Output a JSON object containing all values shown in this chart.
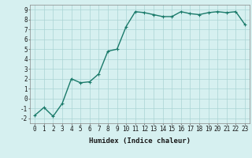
{
  "x": [
    0,
    1,
    2,
    3,
    4,
    5,
    6,
    7,
    8,
    9,
    10,
    11,
    12,
    13,
    14,
    15,
    16,
    17,
    18,
    19,
    20,
    21,
    22,
    23
  ],
  "y": [
    -1.7,
    -0.9,
    -1.8,
    -0.5,
    2.0,
    1.6,
    1.7,
    2.5,
    4.8,
    5.0,
    7.3,
    8.8,
    8.7,
    8.5,
    8.3,
    8.3,
    8.8,
    8.6,
    8.5,
    8.7,
    8.8,
    8.7,
    8.8,
    7.5
  ],
  "line_color": "#1a7a6a",
  "marker": "+",
  "marker_size": 3,
  "background_color": "#d6f0f0",
  "grid_color": "#aad4d4",
  "xlabel": "Humidex (Indice chaleur)",
  "ylabel": "",
  "xlim": [
    -0.5,
    23.5
  ],
  "ylim": [
    -2.5,
    9.5
  ],
  "yticks": [
    -2,
    -1,
    0,
    1,
    2,
    3,
    4,
    5,
    6,
    7,
    8,
    9
  ],
  "xticks": [
    0,
    1,
    2,
    3,
    4,
    5,
    6,
    7,
    8,
    9,
    10,
    11,
    12,
    13,
    14,
    15,
    16,
    17,
    18,
    19,
    20,
    21,
    22,
    23
  ],
  "tick_fontsize": 5.5,
  "xlabel_fontsize": 6.5,
  "line_width": 1.0
}
